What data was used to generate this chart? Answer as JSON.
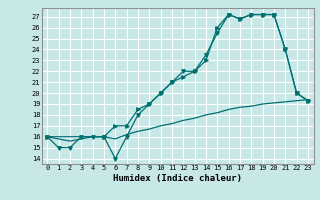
{
  "xlabel": "Humidex (Indice chaleur)",
  "bg_color": "#c8e8e8",
  "grid_color": "#ffffff",
  "line_color": "#007070",
  "xlim": [
    -0.5,
    23.5
  ],
  "ylim": [
    13.5,
    27.8
  ],
  "yticks": [
    14,
    15,
    16,
    17,
    18,
    19,
    20,
    21,
    22,
    23,
    24,
    25,
    26,
    27
  ],
  "xticks": [
    0,
    1,
    2,
    3,
    4,
    5,
    6,
    7,
    8,
    9,
    10,
    11,
    12,
    13,
    14,
    15,
    16,
    17,
    18,
    19,
    20,
    21,
    22,
    23
  ],
  "line1_x": [
    0,
    1,
    2,
    3,
    4,
    5,
    6,
    7,
    8,
    9,
    10,
    11,
    12,
    13,
    14,
    15,
    16,
    17,
    18,
    19,
    20,
    21,
    22,
    23
  ],
  "line1_y": [
    16,
    15,
    15,
    16,
    16,
    16,
    14,
    16,
    18,
    19,
    20,
    21,
    22,
    22,
    23.5,
    25.5,
    27.2,
    26.8,
    27.2,
    27.2,
    27.2,
    24,
    20,
    19.3
  ],
  "line2_x": [
    0,
    1,
    2,
    3,
    4,
    5,
    6,
    7,
    8,
    9,
    10,
    11,
    12,
    13,
    14,
    15,
    16,
    17,
    18,
    19,
    20,
    21,
    22,
    23
  ],
  "line2_y": [
    16,
    15.8,
    15.6,
    15.8,
    16,
    16.0,
    15.8,
    16.2,
    16.5,
    16.7,
    17.0,
    17.2,
    17.5,
    17.7,
    18.0,
    18.2,
    18.5,
    18.7,
    18.8,
    19.0,
    19.1,
    19.2,
    19.3,
    19.4
  ],
  "line3_x": [
    0,
    5,
    6,
    7,
    8,
    9,
    10,
    11,
    12,
    13,
    14,
    15,
    16,
    17,
    18,
    19,
    20,
    21,
    22,
    23
  ],
  "line3_y": [
    16,
    16,
    17,
    17,
    18.5,
    19,
    20,
    21,
    21.5,
    22,
    23,
    26,
    27.2,
    26.8,
    27.2,
    27.2,
    27.2,
    24,
    20,
    19.3
  ]
}
